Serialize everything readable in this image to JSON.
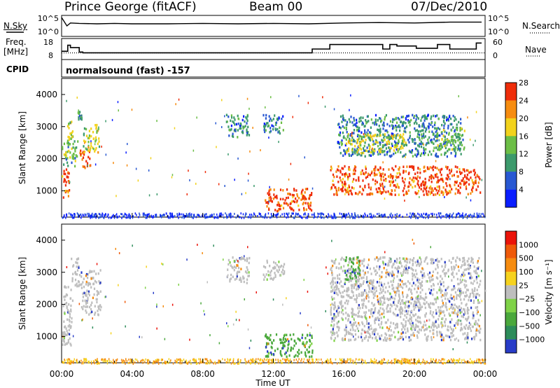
{
  "header": {
    "station": "Prince George (fitACF)",
    "beam": "Beam 00",
    "date": "07/Dec/2010"
  },
  "left_labels": {
    "nsky": "N.Sky",
    "freq": "Freq.",
    "mhz": "[MHz]",
    "cpid": "CPID"
  },
  "right_labels": {
    "nsearch": "N.Search",
    "nave": "Nave"
  },
  "colors": {
    "frame": "#000000",
    "ground_scatter": "#bebebe",
    "freq_line": "#000000"
  },
  "chart_data": [
    {
      "type": "line",
      "panel": "noise",
      "ylabel_left": "N.Sky",
      "ylabel_right": "N.Search",
      "yticks_left": [
        "10^5",
        "10^0"
      ],
      "yticks_right": [
        "10^5",
        "10^0"
      ],
      "series": [
        {
          "name": "N.Sky",
          "style": "solid",
          "x": [
            0,
            0.3,
            0.5,
            1,
            2,
            3,
            4,
            6,
            8,
            10,
            12,
            14,
            16,
            18,
            20,
            22,
            23.8
          ],
          "values": [
            4.5,
            2.5,
            3.2,
            3.1,
            3.0,
            3.1,
            3.0,
            3.0,
            3.1,
            3.0,
            3.1,
            3.0,
            3.2,
            3.3,
            3.2,
            3.4,
            3.4
          ]
        }
      ]
    },
    {
      "type": "line",
      "panel": "freq_nave",
      "ylabel_left": "Freq. [MHz]",
      "ylabel_right": "Nave",
      "yticks_left": [
        "18",
        "8"
      ],
      "yticks_right": [
        "60",
        "0"
      ],
      "series": [
        {
          "name": "Freq.",
          "style": "step",
          "x": [
            0,
            0.35,
            0.5,
            1.0,
            1.2,
            13.9,
            14.2,
            14.8,
            15.2,
            18.2,
            18.6,
            19.0,
            20.1,
            21.3,
            22.0,
            23.1,
            23.5,
            23.8
          ],
          "values": [
            11.5,
            15.5,
            14,
            11,
            10.5,
            10.5,
            13,
            13,
            16,
            13,
            16,
            15,
            13.5,
            16,
            13,
            13,
            17,
            17
          ]
        },
        {
          "name": "Nave",
          "style": "dotted",
          "x": [
            0,
            23.8
          ],
          "values": [
            19,
            19
          ]
        }
      ]
    },
    {
      "type": "heatmap",
      "panel": "power",
      "cpid_text": "normalsound (fast) -157",
      "ylabel": "Slant Range [km]",
      "yticks": [
        "1000",
        "2000",
        "3000",
        "4000"
      ],
      "ylim": [
        180,
        4500
      ],
      "xlim": [
        0,
        24
      ],
      "colorbar": {
        "label": "Power [dB]",
        "ticks": [
          "4",
          "8",
          "12",
          "16",
          "20",
          "24",
          "28"
        ],
        "colors": [
          "#0a1eff",
          "#2858d2",
          "#3c9a6c",
          "#6cbe46",
          "#f2d21c",
          "#f68c10",
          "#ef2d0a"
        ]
      },
      "regions": [
        {
          "t": [
            0.0,
            0.4
          ],
          "r": [
            700,
            1800
          ],
          "c": 6
        },
        {
          "t": [
            0.0,
            0.9
          ],
          "r": [
            1800,
            2600
          ],
          "c": 3
        },
        {
          "t": [
            0.3,
            0.6
          ],
          "r": [
            2600,
            3200
          ],
          "c": 4
        },
        {
          "t": [
            0.9,
            1.1
          ],
          "r": [
            3200,
            3500
          ],
          "c": 2
        },
        {
          "t": [
            1.0,
            1.6
          ],
          "r": [
            1700,
            2300
          ],
          "c": 6
        },
        {
          "t": [
            1.2,
            2.1
          ],
          "r": [
            2200,
            3100
          ],
          "c": 4
        },
        {
          "t": [
            9.3,
            10.6
          ],
          "r": [
            2700,
            3400
          ],
          "c": 2
        },
        {
          "t": [
            11.4,
            12.6
          ],
          "r": [
            2800,
            3400
          ],
          "c": 2
        },
        {
          "t": [
            11.5,
            14.2
          ],
          "r": [
            400,
            1100
          ],
          "c": 6
        },
        {
          "t": [
            15.2,
            22.8
          ],
          "r": [
            900,
            1800
          ],
          "c": 6
        },
        {
          "t": [
            15.6,
            22.6
          ],
          "r": [
            2100,
            3400
          ],
          "c": 2
        },
        {
          "t": [
            16.1,
            19.5
          ],
          "r": [
            2200,
            2800
          ],
          "c": 4
        },
        {
          "t": [
            21.2,
            22.8
          ],
          "r": [
            2300,
            3000
          ],
          "c": 3
        },
        {
          "t": [
            22.8,
            23.7
          ],
          "r": [
            900,
            1700
          ],
          "c": 6
        }
      ]
    },
    {
      "type": "heatmap",
      "panel": "velocity",
      "ylabel": "Slant Range [km]",
      "yticks": [
        "1000",
        "2000",
        "3000",
        "4000"
      ],
      "ylim": [
        180,
        4500
      ],
      "xlim": [
        0,
        24
      ],
      "xticks": [
        "00:00",
        "04:00",
        "08:00",
        "12:00",
        "16:00",
        "20:00",
        "00:00"
      ],
      "xlabel": "Time UT",
      "colorbar": {
        "label": "Velocity [m s⁻¹]",
        "ticks": [
          "1000",
          "500",
          "100",
          "25",
          "−25",
          "−100",
          "−500",
          "−1000"
        ],
        "colors": [
          "#283cc8",
          "#2d8c5a",
          "#4aa83c",
          "#7fd247",
          "#bebebe",
          "#f6d21e",
          "#f68c10",
          "#ef5a0a",
          "#eb140a"
        ]
      },
      "regions": [
        {
          "t": [
            0.0,
            0.6
          ],
          "r": [
            700,
            2600
          ],
          "c": 4
        },
        {
          "t": [
            0.5,
            1.1
          ],
          "r": [
            2600,
            3500
          ],
          "c": 4
        },
        {
          "t": [
            1.1,
            2.2
          ],
          "r": [
            1700,
            3100
          ],
          "c": 4
        },
        {
          "t": [
            9.3,
            10.6
          ],
          "r": [
            2700,
            3500
          ],
          "c": 4
        },
        {
          "t": [
            11.4,
            12.6
          ],
          "r": [
            2800,
            3400
          ],
          "c": 4
        },
        {
          "t": [
            11.5,
            14.2
          ],
          "r": [
            400,
            1100
          ],
          "c": 2
        },
        {
          "t": [
            15.2,
            23.7
          ],
          "r": [
            900,
            3500
          ],
          "c": 4
        },
        {
          "t": [
            16.0,
            17.0
          ],
          "r": [
            2800,
            3500
          ],
          "c": 2
        }
      ]
    }
  ]
}
